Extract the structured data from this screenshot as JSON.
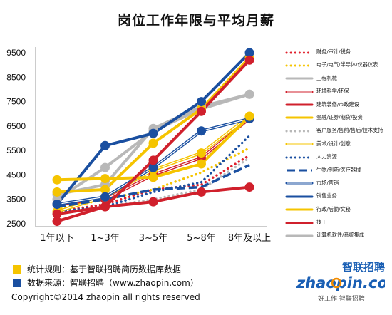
{
  "chart_data": {
    "type": "line",
    "title": "岗位工作年限与平均月薪",
    "categories": [
      "1年以下",
      "1~3年",
      "3~5年",
      "5~8年",
      "8年及以上"
    ],
    "ylim": [
      2500,
      9500
    ],
    "yticks": [
      2500,
      3500,
      4500,
      5500,
      6500,
      7500,
      8500,
      9500
    ],
    "grid": false,
    "legend_position": "right",
    "series": [
      {
        "name": "财务/审计/税务",
        "color": "#e0202c",
        "style": "dotted",
        "values": [
          3000,
          3300,
          3900,
          4100,
          5300
        ]
      },
      {
        "name": "电子/电气/半导体/仪器仪表",
        "color": "#f5c400",
        "style": "dotted",
        "values": [
          3100,
          3500,
          3900,
          4600,
          5600
        ]
      },
      {
        "name": "工程机械",
        "color": "#b8b8b8",
        "style": "solid",
        "values": [
          3700,
          4100,
          6400,
          7300,
          7800
        ]
      },
      {
        "name": "环境科学/环保",
        "color": "#d0202c",
        "style": "double",
        "values": [
          3300,
          3500,
          4500,
          5200,
          6800
        ]
      },
      {
        "name": "建筑装修/市政建设",
        "color": "#d0202c",
        "style": "solid",
        "values": [
          2600,
          3200,
          3400,
          3800,
          4000
        ]
      },
      {
        "name": "金融/证券/期货/投资",
        "color": "#f5c400",
        "style": "solid",
        "values": [
          3800,
          3900,
          5800,
          7200,
          9300
        ]
      },
      {
        "name": "客户服务/售前/售后/技术支持",
        "color": "#b8b8b8",
        "style": "dotted",
        "values": [
          3000,
          3200,
          3500,
          3900,
          5200
        ]
      },
      {
        "name": "美术/设计/创意",
        "color": "#f5c400",
        "style": "double",
        "values": [
          3000,
          3600,
          4700,
          5400,
          6900
        ]
      },
      {
        "name": "人力资源",
        "color": "#1a4fa0",
        "style": "dotted",
        "values": [
          3000,
          3200,
          3800,
          4200,
          6100
        ]
      },
      {
        "name": "生物/制药/医疗器械",
        "color": "#1a4fa0",
        "style": "dashed",
        "values": [
          3200,
          3500,
          3900,
          4000,
          4900
        ]
      },
      {
        "name": "市场/营销",
        "color": "#1a4fa0",
        "style": "double",
        "values": [
          3300,
          3600,
          4800,
          6300,
          6800
        ]
      },
      {
        "name": "销售业务",
        "color": "#1a4fa0",
        "style": "solid",
        "values": [
          3300,
          5700,
          6200,
          7500,
          9500
        ]
      },
      {
        "name": "行政/后勤/文秘",
        "color": "#f5c400",
        "style": "solid",
        "values": [
          4300,
          4350,
          4400,
          4950,
          6900
        ]
      },
      {
        "name": "技工",
        "color": "#d0202c",
        "style": "solid",
        "values": [
          2900,
          3200,
          5100,
          7100,
          9200
        ]
      },
      {
        "name": "计算机软件/系统集成",
        "color": "#b8b8b8",
        "style": "solid",
        "values": [
          3500,
          4800,
          6300,
          7200,
          7800
        ]
      }
    ]
  },
  "notes": {
    "rule": "统计规则：基于智联招聘简历数据库数据",
    "source": "数据来源：智联招聘（www.zhaopin.com）",
    "rule_color": "#f5c400",
    "source_color": "#1a4fa0"
  },
  "copyright": "Copyright©2014 zhaopin all rights reserved",
  "logo": {
    "brand": "智联招聘",
    "domain": "zhaopin.com",
    "slogan": "好工作 智联招聘",
    "color": "#1a5fb4",
    "accent": "#f28c00"
  }
}
